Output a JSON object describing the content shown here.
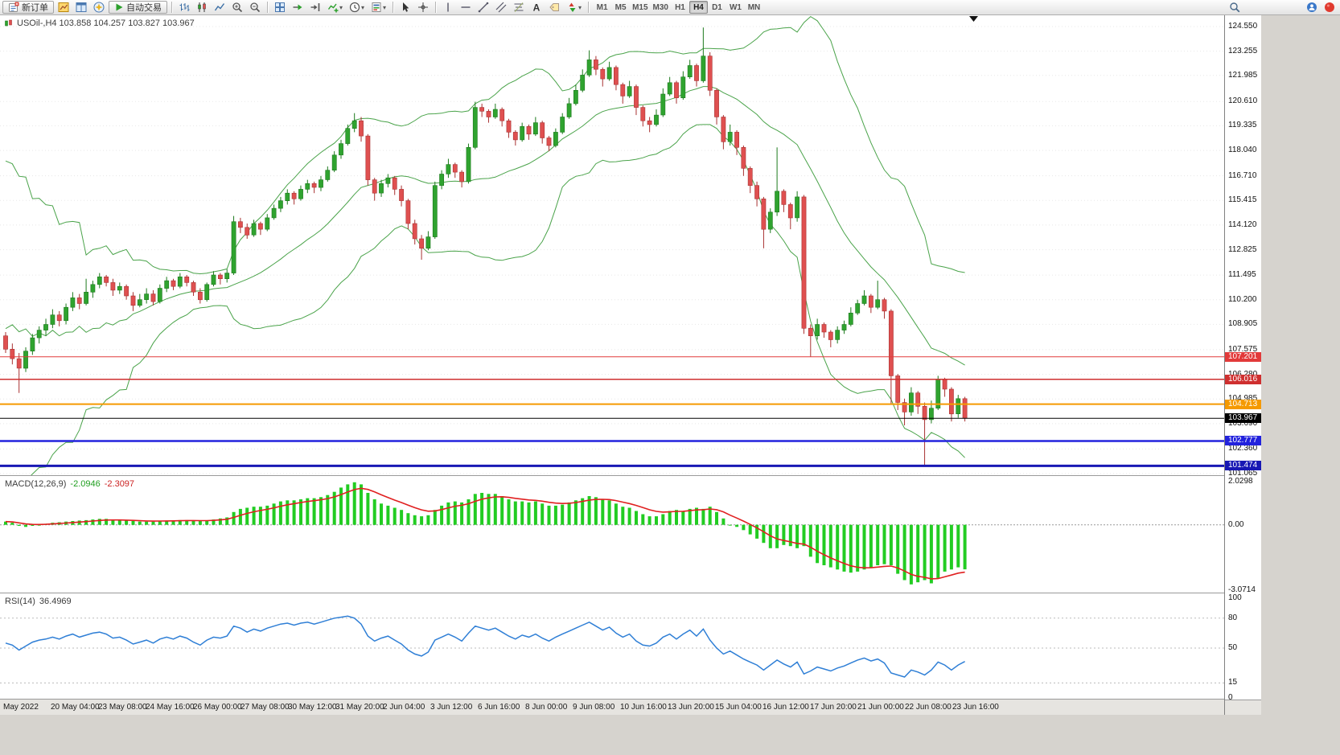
{
  "toolbar": {
    "items": [
      {
        "icon": "new-order-icon",
        "label": "新订单",
        "type": "button"
      },
      {
        "icon": "charts-icon"
      },
      {
        "icon": "market-watch-icon"
      },
      {
        "icon": "navigator-icon"
      },
      {
        "icon": "autotrading-icon",
        "label": "自动交易",
        "type": "button"
      },
      {
        "type": "sep"
      },
      {
        "icon": "bar-chart-icon"
      },
      {
        "icon": "candlestick-chart-icon"
      },
      {
        "icon": "line-chart-icon"
      },
      {
        "icon": "zoom-in-icon"
      },
      {
        "icon": "zoom-out-icon"
      },
      {
        "type": "sep"
      },
      {
        "icon": "tile-windows-icon"
      },
      {
        "icon": "auto-scroll-icon"
      },
      {
        "icon": "chart-shift-icon"
      },
      {
        "icon": "indicators-icon",
        "dropdown": true
      },
      {
        "icon": "periods-icon",
        "dropdown": true
      },
      {
        "icon": "templates-icon",
        "dropdown": true
      },
      {
        "type": "sep"
      },
      {
        "icon": "cursor-icon"
      },
      {
        "icon": "crosshair-icon"
      },
      {
        "type": "sep"
      },
      {
        "icon": "vertical-line-icon"
      },
      {
        "icon": "horizontal-line-icon"
      },
      {
        "icon": "trendline-icon"
      },
      {
        "icon": "channel-icon"
      },
      {
        "icon": "fibonacci-icon"
      },
      {
        "icon": "text-icon"
      },
      {
        "icon": "label-icon"
      },
      {
        "icon": "arrows-icon",
        "dropdown": true
      },
      {
        "type": "sep"
      },
      {
        "type": "timeframes"
      },
      {
        "type": "spacer"
      },
      {
        "icon": "search-icon"
      },
      {
        "type": "gap"
      },
      {
        "icon": "community-icon"
      },
      {
        "icon": "alerts-icon"
      }
    ],
    "timeframes": [
      "M1",
      "M5",
      "M15",
      "M30",
      "H1",
      "H4",
      "D1",
      "W1",
      "MN"
    ],
    "active_timeframe": "H4"
  },
  "chart": {
    "title": "USOil-,H4 103.858 104.257 103.827 103.967",
    "symbol": "USOil-",
    "period": "H4",
    "ohlc": {
      "open": "103.858",
      "high": "104.257",
      "low": "103.827",
      "close": "103.967"
    },
    "price_axis_labels": [
      "124.550",
      "123.255",
      "121.985",
      "120.610",
      "119.335",
      "118.040",
      "116.710",
      "115.415",
      "114.120",
      "112.825",
      "111.495",
      "110.200",
      "108.905",
      "107.575",
      "106.280",
      "104.985",
      "103.690",
      "102.360",
      "101.065"
    ],
    "price_lines": [
      {
        "label": "107.201",
        "price": 107.201,
        "color": "#e23a3a",
        "width": 1
      },
      {
        "label": "106.016",
        "price": 106.016,
        "color": "#cf2f2f",
        "width": 1.5
      },
      {
        "label": "104.713",
        "price": 104.713,
        "color": "#f59a00",
        "width": 2
      },
      {
        "label": "103.967",
        "price": 103.967,
        "color": "#000000",
        "width": 1,
        "current": true
      },
      {
        "label": "102.777",
        "price": 102.777,
        "color": "#2222dd",
        "width": 2.5
      },
      {
        "label": "101.474",
        "price": 101.474,
        "color": "#1818b4",
        "width": 3
      }
    ]
  },
  "macd": {
    "name": "MACD(12,26,9)",
    "value_main": "-2.0946",
    "value_signal": "-2.3097",
    "axis_labels": [
      "2.0298",
      "0.00",
      "-3.0714"
    ],
    "axis_values": [
      2.0298,
      0,
      -3.0714
    ]
  },
  "rsi": {
    "name": "RSI(14)",
    "value": "36.4969",
    "axis_labels": [
      "100",
      "80",
      "50",
      "15",
      "0"
    ],
    "axis_values": [
      100,
      80,
      50,
      15,
      0
    ],
    "levels": [
      80,
      50,
      15
    ]
  },
  "time_axis": {
    "labels": [
      "May 2022",
      "20 May 04:00",
      "23 May 08:00",
      "24 May 16:00",
      "26 May 00:00",
      "27 May 08:00",
      "30 May 12:00",
      "31 May 20:00",
      "2 Jun 04:00",
      "3 Jun 12:00",
      "6 Jun 16:00",
      "8 Jun 00:00",
      "9 Jun 08:00",
      "10 Jun 16:00",
      "13 Jun 20:00",
      "15 Jun 04:00",
      "16 Jun 12:00",
      "17 Jun 20:00",
      "21 Jun 00:00",
      "22 Jun 08:00",
      "23 Jun 16:00"
    ]
  },
  "chart_data": {
    "type": "candlestick",
    "symbol": "USOil",
    "timeframe": "H4",
    "up_color": "#2fa32f",
    "down_color": "#df5050",
    "wick_up_color": "#1d7a1d",
    "wick_down_color": "#a83232",
    "macd_color": "#22cc22",
    "macd_signal_color": "#e02020",
    "rsi_color": "#2f7fd6",
    "y_axis": {
      "min": 101.065,
      "max": 124.55
    },
    "macd_axis": {
      "min": -3.0714,
      "max": 2.0298
    },
    "rsi_axis": {
      "min": 0,
      "max": 100
    },
    "bollinger": {
      "period": 20,
      "deviation": 2,
      "color": "#4aa34a",
      "seed_closes": [
        118,
        103,
        114,
        104.5,
        116,
        105,
        112,
        103.5,
        115,
        106,
        110,
        104,
        117,
        107,
        111,
        105.5,
        113,
        106.5,
        109,
        104
      ]
    },
    "candles": [
      [
        108.3,
        108.5,
        107.4,
        107.6
      ],
      [
        107.6,
        107.9,
        106.8,
        107.1
      ],
      [
        107.1,
        107.4,
        105.3,
        106.6
      ],
      [
        106.6,
        107.7,
        106.4,
        107.5
      ],
      [
        107.5,
        108.4,
        107.3,
        108.2
      ],
      [
        108.2,
        108.8,
        107.9,
        108.6
      ],
      [
        108.6,
        109.2,
        108.3,
        108.9
      ],
      [
        108.9,
        109.7,
        108.7,
        109.4
      ],
      [
        109.4,
        109.6,
        108.8,
        109.1
      ],
      [
        109.1,
        110.0,
        108.9,
        109.8
      ],
      [
        109.8,
        110.6,
        109.6,
        110.3
      ],
      [
        110.3,
        110.5,
        109.7,
        110.0
      ],
      [
        110.0,
        111.3,
        109.9,
        110.6
      ],
      [
        110.6,
        111.2,
        110.3,
        111.0
      ],
      [
        111.0,
        111.6,
        110.8,
        111.4
      ],
      [
        111.4,
        111.5,
        110.9,
        111.1
      ],
      [
        111.1,
        111.3,
        110.4,
        110.7
      ],
      [
        110.7,
        111.1,
        110.5,
        110.9
      ],
      [
        110.9,
        111.0,
        110.2,
        110.4
      ],
      [
        110.4,
        110.6,
        109.6,
        109.9
      ],
      [
        109.9,
        110.5,
        109.8,
        110.2
      ],
      [
        110.2,
        110.8,
        110.0,
        110.5
      ],
      [
        110.5,
        110.7,
        109.9,
        110.1
      ],
      [
        110.1,
        111.0,
        110.0,
        110.8
      ],
      [
        110.8,
        111.4,
        110.6,
        111.2
      ],
      [
        111.2,
        111.3,
        110.7,
        110.9
      ],
      [
        110.9,
        111.6,
        110.8,
        111.4
      ],
      [
        111.4,
        111.5,
        110.9,
        111.1
      ],
      [
        111.1,
        111.2,
        110.4,
        110.6
      ],
      [
        110.6,
        110.8,
        110.0,
        110.2
      ],
      [
        110.2,
        111.1,
        110.1,
        111.0
      ],
      [
        111.0,
        111.7,
        110.9,
        111.5
      ],
      [
        111.5,
        111.6,
        111.0,
        111.3
      ],
      [
        111.3,
        111.8,
        111.1,
        111.6
      ],
      [
        111.6,
        114.6,
        111.5,
        114.3
      ],
      [
        114.3,
        114.5,
        113.7,
        114.0
      ],
      [
        114.0,
        114.2,
        113.4,
        113.6
      ],
      [
        113.6,
        114.4,
        113.5,
        114.2
      ],
      [
        114.2,
        114.3,
        113.6,
        113.9
      ],
      [
        113.9,
        114.7,
        113.8,
        114.5
      ],
      [
        114.5,
        115.2,
        114.4,
        115.0
      ],
      [
        115.0,
        115.6,
        114.8,
        115.4
      ],
      [
        115.4,
        116.0,
        115.2,
        115.8
      ],
      [
        115.8,
        115.9,
        115.2,
        115.5
      ],
      [
        115.5,
        116.2,
        115.4,
        116.0
      ],
      [
        116.0,
        116.5,
        115.8,
        116.3
      ],
      [
        116.3,
        116.4,
        115.8,
        116.1
      ],
      [
        116.1,
        116.7,
        115.9,
        116.5
      ],
      [
        116.5,
        117.2,
        116.4,
        117.0
      ],
      [
        117.0,
        118.0,
        116.9,
        117.8
      ],
      [
        117.8,
        118.6,
        117.6,
        118.4
      ],
      [
        118.4,
        119.4,
        118.3,
        119.2
      ],
      [
        119.2,
        120.0,
        119.0,
        119.6
      ],
      [
        119.6,
        119.8,
        118.5,
        118.8
      ],
      [
        118.8,
        118.9,
        116.2,
        116.5
      ],
      [
        116.5,
        116.6,
        115.4,
        115.8
      ],
      [
        115.8,
        116.5,
        115.6,
        116.3
      ],
      [
        116.3,
        116.8,
        116.1,
        116.6
      ],
      [
        116.6,
        116.7,
        115.7,
        116.0
      ],
      [
        116.0,
        116.2,
        115.1,
        115.4
      ],
      [
        115.4,
        115.5,
        113.9,
        114.2
      ],
      [
        114.2,
        114.4,
        113.1,
        113.4
      ],
      [
        113.4,
        113.6,
        112.3,
        112.9
      ],
      [
        112.9,
        113.8,
        112.8,
        113.5
      ],
      [
        113.5,
        116.4,
        113.4,
        116.2
      ],
      [
        116.2,
        117.0,
        116.0,
        116.8
      ],
      [
        116.8,
        117.6,
        116.6,
        117.3
      ],
      [
        117.3,
        117.4,
        116.6,
        116.9
      ],
      [
        116.9,
        117.0,
        116.1,
        116.4
      ],
      [
        116.4,
        118.4,
        116.3,
        118.2
      ],
      [
        118.2,
        120.6,
        118.1,
        120.3
      ],
      [
        120.3,
        120.5,
        119.8,
        120.1
      ],
      [
        120.1,
        120.2,
        119.5,
        119.8
      ],
      [
        119.8,
        120.5,
        119.7,
        120.2
      ],
      [
        120.2,
        120.3,
        119.3,
        119.6
      ],
      [
        119.6,
        119.7,
        118.7,
        119.0
      ],
      [
        119.0,
        119.1,
        118.3,
        118.6
      ],
      [
        118.6,
        119.5,
        118.5,
        119.3
      ],
      [
        119.3,
        119.4,
        118.6,
        118.9
      ],
      [
        118.9,
        119.8,
        118.8,
        119.5
      ],
      [
        119.5,
        119.6,
        118.4,
        118.7
      ],
      [
        118.7,
        118.8,
        118.0,
        118.3
      ],
      [
        118.3,
        119.2,
        118.2,
        119.0
      ],
      [
        119.0,
        120.0,
        118.9,
        119.8
      ],
      [
        119.8,
        120.8,
        119.7,
        120.5
      ],
      [
        120.5,
        121.5,
        120.4,
        121.2
      ],
      [
        121.2,
        122.3,
        121.1,
        122.0
      ],
      [
        122.0,
        123.3,
        121.9,
        122.8
      ],
      [
        122.8,
        123.0,
        122.0,
        122.3
      ],
      [
        122.3,
        122.4,
        121.4,
        121.8
      ],
      [
        121.8,
        122.7,
        121.7,
        122.4
      ],
      [
        122.4,
        122.5,
        121.2,
        121.5
      ],
      [
        121.5,
        121.6,
        120.5,
        120.9
      ],
      [
        120.9,
        121.7,
        120.8,
        121.4
      ],
      [
        121.4,
        121.5,
        119.9,
        120.3
      ],
      [
        120.3,
        120.4,
        119.3,
        119.6
      ],
      [
        119.6,
        119.8,
        119.0,
        119.4
      ],
      [
        119.4,
        120.2,
        119.3,
        119.9
      ],
      [
        119.9,
        121.3,
        119.8,
        121.0
      ],
      [
        121.0,
        121.9,
        120.9,
        121.6
      ],
      [
        121.6,
        121.7,
        120.5,
        120.8
      ],
      [
        120.8,
        122.2,
        120.7,
        121.9
      ],
      [
        121.9,
        122.8,
        121.8,
        122.5
      ],
      [
        122.5,
        122.6,
        121.4,
        121.7
      ],
      [
        121.7,
        124.5,
        121.6,
        123.0
      ],
      [
        123.0,
        123.2,
        120.9,
        121.2
      ],
      [
        121.2,
        121.3,
        119.4,
        119.8
      ],
      [
        119.8,
        119.9,
        118.1,
        118.5
      ],
      [
        118.5,
        119.4,
        118.3,
        119.0
      ],
      [
        119.0,
        119.1,
        117.8,
        118.2
      ],
      [
        118.2,
        118.3,
        116.7,
        117.1
      ],
      [
        117.1,
        117.2,
        115.8,
        116.2
      ],
      [
        116.2,
        116.4,
        115.1,
        115.5
      ],
      [
        115.5,
        115.6,
        112.9,
        113.9
      ],
      [
        113.9,
        115.0,
        113.7,
        114.8
      ],
      [
        114.8,
        118.2,
        114.6,
        115.9
      ],
      [
        115.9,
        116.0,
        114.8,
        115.2
      ],
      [
        115.2,
        115.3,
        113.9,
        114.5
      ],
      [
        114.5,
        115.9,
        114.3,
        115.6
      ],
      [
        115.6,
        115.7,
        108.4,
        108.7
      ],
      [
        108.7,
        108.9,
        107.2,
        108.3
      ],
      [
        108.3,
        109.2,
        108.1,
        108.9
      ],
      [
        108.9,
        109.0,
        108.2,
        108.5
      ],
      [
        108.5,
        108.6,
        107.7,
        108.1
      ],
      [
        108.1,
        108.8,
        107.9,
        108.6
      ],
      [
        108.6,
        109.1,
        108.4,
        108.9
      ],
      [
        108.9,
        109.8,
        108.8,
        109.5
      ],
      [
        109.5,
        110.2,
        109.4,
        110.0
      ],
      [
        110.0,
        110.7,
        109.9,
        110.4
      ],
      [
        110.4,
        110.5,
        109.5,
        109.8
      ],
      [
        109.8,
        111.2,
        109.7,
        110.2
      ],
      [
        110.2,
        110.3,
        109.2,
        109.6
      ],
      [
        109.6,
        109.7,
        104.7,
        106.2
      ],
      [
        106.2,
        106.3,
        104.4,
        104.8
      ],
      [
        104.8,
        105.0,
        103.6,
        104.3
      ],
      [
        104.3,
        105.6,
        104.1,
        105.3
      ],
      [
        105.3,
        105.4,
        104.2,
        104.6
      ],
      [
        104.6,
        104.8,
        101.5,
        103.9
      ],
      [
        103.9,
        104.9,
        103.7,
        104.5
      ],
      [
        104.5,
        106.2,
        104.4,
        106.0
      ],
      [
        106.0,
        106.1,
        105.1,
        105.5
      ],
      [
        105.5,
        105.6,
        103.8,
        104.2
      ],
      [
        104.2,
        105.2,
        104.0,
        105.0
      ],
      [
        105.0,
        105.1,
        103.8,
        103.967
      ]
    ],
    "macd_histogram": [
      0.15,
      0.1,
      -0.05,
      -0.1,
      -0.05,
      0.0,
      0.05,
      0.1,
      0.12,
      0.15,
      0.18,
      0.2,
      0.22,
      0.25,
      0.28,
      0.28,
      0.25,
      0.22,
      0.2,
      0.18,
      0.15,
      0.15,
      0.15,
      0.18,
      0.2,
      0.2,
      0.22,
      0.22,
      0.2,
      0.18,
      0.2,
      0.25,
      0.3,
      0.35,
      0.6,
      0.75,
      0.8,
      0.85,
      0.85,
      0.9,
      1.0,
      1.1,
      1.15,
      1.15,
      1.2,
      1.25,
      1.25,
      1.3,
      1.4,
      1.55,
      1.75,
      1.9,
      2.0,
      1.9,
      1.5,
      1.2,
      1.0,
      0.9,
      0.8,
      0.7,
      0.55,
      0.45,
      0.4,
      0.45,
      0.7,
      0.9,
      1.05,
      1.1,
      1.05,
      1.2,
      1.45,
      1.5,
      1.45,
      1.45,
      1.35,
      1.2,
      1.1,
      1.1,
      1.05,
      1.1,
      1.0,
      0.9,
      0.9,
      0.95,
      1.05,
      1.15,
      1.25,
      1.35,
      1.3,
      1.2,
      1.15,
      1.0,
      0.85,
      0.8,
      0.65,
      0.5,
      0.4,
      0.4,
      0.5,
      0.65,
      0.7,
      0.65,
      0.75,
      0.8,
      0.75,
      0.85,
      0.6,
      0.3,
      0.0,
      -0.1,
      -0.25,
      -0.45,
      -0.65,
      -0.85,
      -1.1,
      -1.1,
      -0.95,
      -1.0,
      -1.1,
      -1.0,
      -1.5,
      -1.8,
      -1.9,
      -2.0,
      -2.1,
      -2.2,
      -2.25,
      -2.2,
      -2.1,
      -2.0,
      -1.9,
      -1.85,
      -1.9,
      -2.3,
      -2.6,
      -2.8,
      -2.7,
      -2.6,
      -2.75,
      -2.5,
      -2.2,
      -2.1,
      -2.0,
      -2.0946
    ],
    "rsi_values": [
      55,
      53,
      48,
      52,
      56,
      58,
      59,
      61,
      59,
      62,
      64,
      61,
      63,
      65,
      66,
      64,
      60,
      61,
      58,
      54,
      56,
      58,
      55,
      59,
      61,
      59,
      62,
      60,
      56,
      53,
      58,
      61,
      60,
      62,
      72,
      70,
      66,
      69,
      67,
      70,
      72,
      74,
      75,
      73,
      75,
      76,
      74,
      76,
      78,
      80,
      81,
      82,
      80,
      74,
      62,
      57,
      60,
      62,
      58,
      54,
      48,
      44,
      42,
      46,
      58,
      61,
      64,
      61,
      57,
      65,
      72,
      70,
      68,
      70,
      66,
      62,
      59,
      63,
      61,
      64,
      60,
      57,
      61,
      64,
      67,
      70,
      73,
      76,
      72,
      68,
      71,
      65,
      61,
      64,
      57,
      53,
      52,
      55,
      61,
      64,
      59,
      64,
      68,
      62,
      69,
      58,
      50,
      44,
      47,
      43,
      39,
      36,
      33,
      28,
      33,
      38,
      34,
      31,
      36,
      24,
      27,
      31,
      29,
      27,
      30,
      32,
      35,
      38,
      40,
      37,
      39,
      35,
      25,
      23,
      21,
      28,
      26,
      23,
      28,
      36,
      33,
      28,
      33,
      36.4969
    ]
  }
}
